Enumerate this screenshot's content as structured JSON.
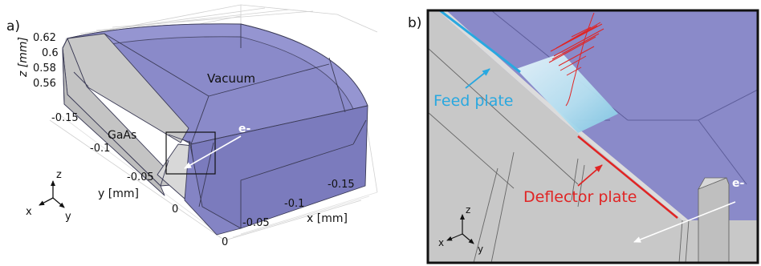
{
  "panel_a": {
    "label": "a)",
    "z_axis": {
      "label": "z [mm]",
      "ticks": [
        "0.62",
        "0.6",
        "0.58",
        "0.56"
      ]
    },
    "y_axis": {
      "label": "y [mm]",
      "ticks": [
        "-0.15",
        "-0.1",
        "-0.05",
        "0"
      ]
    },
    "x_axis": {
      "label": "x [mm]",
      "ticks": [
        "-0.15",
        "-0.1",
        "-0.05",
        "0"
      ]
    },
    "regions": {
      "vacuum": "Vacuum",
      "substrate": "GaAs"
    },
    "beam_label": "e-",
    "triad": {
      "x": "x",
      "y": "y",
      "z": "z"
    }
  },
  "panel_b": {
    "label": "b)",
    "feed_label": "Feed plate",
    "deflector_label": "Deflector plate",
    "beam_label": "e-",
    "triad": {
      "x": "x",
      "y": "y",
      "z": "z"
    }
  },
  "colors": {
    "vacuum": "#8a8ac9",
    "substrate": "#cbcbcb",
    "feed": "#29a8e0",
    "deflector": "#e02424",
    "beam": "#ffffff"
  }
}
